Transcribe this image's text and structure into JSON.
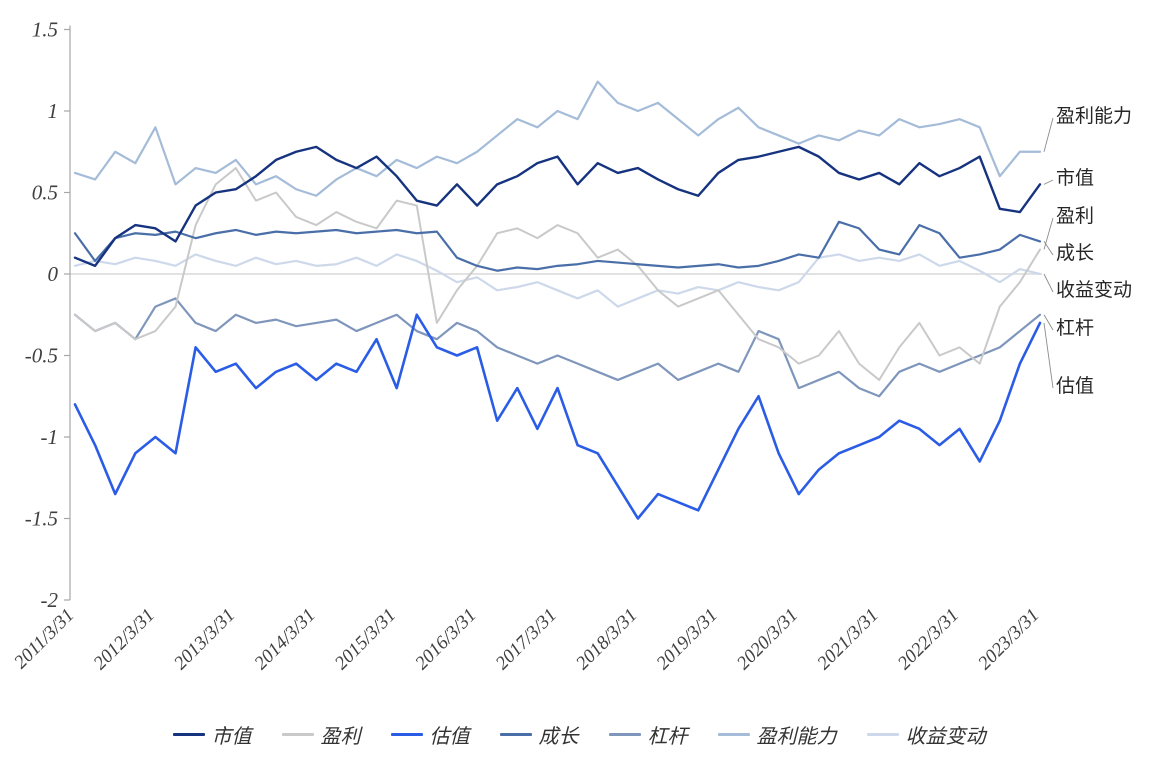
{
  "chart_data": {
    "type": "line",
    "title": "",
    "xlabel": "",
    "ylabel": "",
    "ylim": [
      -2,
      1.5
    ],
    "grid": "zero-line-only",
    "legend_position": "bottom",
    "y_ticks": [
      1.5,
      1,
      0.5,
      0,
      -0.5,
      -1,
      -1.5,
      -2
    ],
    "y_tick_labels": [
      "1.5",
      "1",
      "0.5",
      "0",
      "-0.5",
      "-1",
      "-1.5",
      "-2"
    ],
    "x_tick_labels": [
      "2011/3/31",
      "2012/3/31",
      "2013/3/31",
      "2014/3/31",
      "2015/3/31",
      "2016/3/31",
      "2017/3/31",
      "2018/3/31",
      "2019/3/31",
      "2020/3/31",
      "2021/3/31",
      "2022/3/31",
      "2023/3/31"
    ],
    "x_tick_positions": [
      0,
      4,
      8,
      12,
      16,
      20,
      24,
      28,
      32,
      36,
      40,
      44,
      48
    ],
    "x_unit": "quarter-index from 2011/3/31",
    "series": [
      {
        "name": "市值",
        "key": "market-cap",
        "color": "#16337f",
        "width": 2.4,
        "values": [
          0.1,
          0.05,
          0.22,
          0.3,
          0.28,
          0.2,
          0.42,
          0.5,
          0.52,
          0.6,
          0.7,
          0.75,
          0.78,
          0.7,
          0.65,
          0.72,
          0.6,
          0.45,
          0.42,
          0.55,
          0.42,
          0.55,
          0.6,
          0.68,
          0.72,
          0.55,
          0.68,
          0.62,
          0.65,
          0.58,
          0.52,
          0.48,
          0.62,
          0.7,
          0.72,
          0.75,
          0.78,
          0.72,
          0.62,
          0.58,
          0.62,
          0.55,
          0.68,
          0.6,
          0.65,
          0.72,
          0.4,
          0.38,
          0.55
        ]
      },
      {
        "name": "盈利",
        "key": "earnings",
        "color": "#c9c9c9",
        "width": 2,
        "values": [
          -0.25,
          -0.35,
          -0.3,
          -0.4,
          -0.35,
          -0.2,
          0.3,
          0.55,
          0.65,
          0.45,
          0.5,
          0.35,
          0.3,
          0.38,
          0.32,
          0.28,
          0.45,
          0.42,
          -0.3,
          -0.1,
          0.05,
          0.25,
          0.28,
          0.22,
          0.3,
          0.25,
          0.1,
          0.15,
          0.05,
          -0.1,
          -0.2,
          -0.15,
          -0.1,
          -0.25,
          -0.4,
          -0.45,
          -0.55,
          -0.5,
          -0.35,
          -0.55,
          -0.65,
          -0.45,
          -0.3,
          -0.5,
          -0.45,
          -0.55,
          -0.2,
          -0.05,
          0.15
        ]
      },
      {
        "name": "估值",
        "key": "valuation",
        "color": "#2b5ce6",
        "width": 2.6,
        "values": [
          -0.8,
          -1.05,
          -1.35,
          -1.1,
          -1.0,
          -1.1,
          -0.45,
          -0.6,
          -0.55,
          -0.7,
          -0.6,
          -0.55,
          -0.65,
          -0.55,
          -0.6,
          -0.4,
          -0.7,
          -0.25,
          -0.45,
          -0.5,
          -0.45,
          -0.9,
          -0.7,
          -0.95,
          -0.7,
          -1.05,
          -1.1,
          -1.3,
          -1.5,
          -1.35,
          -1.4,
          -1.45,
          -1.2,
          -0.95,
          -0.75,
          -1.1,
          -1.35,
          -1.2,
          -1.1,
          -1.05,
          -1.0,
          -0.9,
          -0.95,
          -1.05,
          -0.95,
          -1.15,
          -0.9,
          -0.55,
          -0.3
        ]
      },
      {
        "name": "成长",
        "key": "growth",
        "color": "#4a6fa8",
        "width": 2.2,
        "values": [
          0.25,
          0.08,
          0.22,
          0.25,
          0.24,
          0.26,
          0.22,
          0.25,
          0.27,
          0.24,
          0.26,
          0.25,
          0.26,
          0.27,
          0.25,
          0.26,
          0.27,
          0.25,
          0.26,
          0.1,
          0.05,
          0.02,
          0.04,
          0.03,
          0.05,
          0.06,
          0.08,
          0.07,
          0.06,
          0.05,
          0.04,
          0.05,
          0.06,
          0.04,
          0.05,
          0.08,
          0.12,
          0.1,
          0.32,
          0.28,
          0.15,
          0.12,
          0.3,
          0.25,
          0.1,
          0.12,
          0.15,
          0.24,
          0.2
        ]
      },
      {
        "name": "杠杆",
        "key": "leverage",
        "color": "#7f96bc",
        "width": 2.2,
        "values": [
          -0.25,
          -0.35,
          -0.3,
          -0.4,
          -0.2,
          -0.15,
          -0.3,
          -0.35,
          -0.25,
          -0.3,
          -0.28,
          -0.32,
          -0.3,
          -0.28,
          -0.35,
          -0.3,
          -0.25,
          -0.35,
          -0.4,
          -0.3,
          -0.35,
          -0.45,
          -0.5,
          -0.55,
          -0.5,
          -0.55,
          -0.6,
          -0.65,
          -0.6,
          -0.55,
          -0.65,
          -0.6,
          -0.55,
          -0.6,
          -0.35,
          -0.4,
          -0.7,
          -0.65,
          -0.6,
          -0.7,
          -0.75,
          -0.6,
          -0.55,
          -0.6,
          -0.55,
          -0.5,
          -0.45,
          -0.35,
          -0.25
        ]
      },
      {
        "name": "盈利能力",
        "key": "profitability",
        "color": "#a4bcd8",
        "width": 2.2,
        "values": [
          0.62,
          0.58,
          0.75,
          0.68,
          0.9,
          0.55,
          0.65,
          0.62,
          0.7,
          0.55,
          0.6,
          0.52,
          0.48,
          0.58,
          0.65,
          0.6,
          0.7,
          0.65,
          0.72,
          0.68,
          0.75,
          0.85,
          0.95,
          0.9,
          1.0,
          0.95,
          1.18,
          1.05,
          1.0,
          1.05,
          0.95,
          0.85,
          0.95,
          1.02,
          0.9,
          0.85,
          0.8,
          0.85,
          0.82,
          0.88,
          0.85,
          0.95,
          0.9,
          0.92,
          0.95,
          0.9,
          0.6,
          0.75,
          0.75
        ]
      },
      {
        "name": "收益变动",
        "key": "earnings-change",
        "color": "#cdd9ea",
        "width": 2.2,
        "values": [
          0.05,
          0.08,
          0.06,
          0.1,
          0.08,
          0.05,
          0.12,
          0.08,
          0.05,
          0.1,
          0.06,
          0.08,
          0.05,
          0.06,
          0.1,
          0.05,
          0.12,
          0.08,
          0.02,
          -0.05,
          -0.02,
          -0.1,
          -0.08,
          -0.05,
          -0.1,
          -0.15,
          -0.1,
          -0.2,
          -0.15,
          -0.1,
          -0.12,
          -0.08,
          -0.1,
          -0.05,
          -0.08,
          -0.1,
          -0.05,
          0.1,
          0.12,
          0.08,
          0.1,
          0.08,
          0.12,
          0.05,
          0.08,
          0.02,
          -0.05,
          0.03,
          0.0
        ]
      }
    ],
    "annotations": [
      {
        "label": "盈利能力",
        "series_index": 5
      },
      {
        "label": "市值",
        "series_index": 0
      },
      {
        "label": "盈利",
        "series_index": 1
      },
      {
        "label": "成长",
        "series_index": 3
      },
      {
        "label": "收益变动",
        "series_index": 6
      },
      {
        "label": "杠杆",
        "series_index": 4
      },
      {
        "label": "估值",
        "series_index": 2
      }
    ],
    "colors": {
      "axis": "#a6a6a6",
      "tick_text": "#404040",
      "zero_line": "#d9d9d9",
      "leader_line": "#8c8c8c"
    }
  }
}
